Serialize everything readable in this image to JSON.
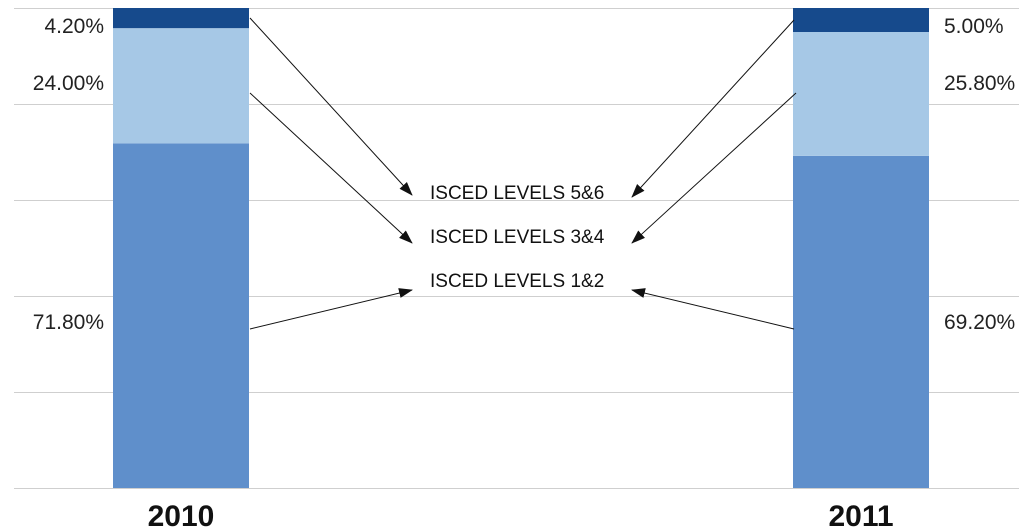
{
  "chart_data": {
    "type": "bar",
    "stacked": true,
    "categories": [
      "2010",
      "2011"
    ],
    "series": [
      {
        "name": "ISCED LEVELS 1&2",
        "values": [
          71.8,
          69.2
        ],
        "labels": [
          "71.80%",
          "69.20%"
        ],
        "color": "#5f8fcb"
      },
      {
        "name": "ISCED LEVELS 3&4",
        "values": [
          24.0,
          25.8
        ],
        "labels": [
          "24.00%",
          "25.80%"
        ],
        "color": "#a6c8e6"
      },
      {
        "name": "ISCED LEVELS 5&6",
        "values": [
          4.2,
          5.0
        ],
        "labels": [
          "4.20%",
          "5.00%"
        ],
        "color": "#164a8c"
      }
    ],
    "ylim": [
      0,
      100
    ],
    "grid": true,
    "legend_placement": "center, between bars with arrows"
  }
}
